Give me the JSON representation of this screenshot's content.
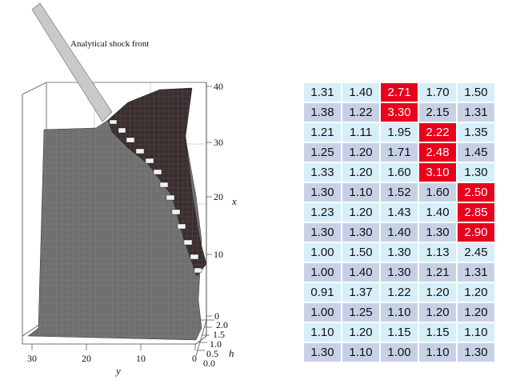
{
  "plot": {
    "annotation": "Analytical shock front",
    "axes": {
      "x": {
        "label": "x",
        "ticks": [
          "40",
          "30",
          "20",
          "10",
          "0"
        ]
      },
      "y": {
        "label": "y",
        "ticks": [
          "30",
          "20",
          "10",
          "0"
        ]
      },
      "h": {
        "label": "h",
        "ticks": [
          "2.0",
          "1.5",
          "1.0",
          "0.5",
          "0.0"
        ]
      }
    }
  },
  "grid": {
    "rows": [
      [
        "1.31",
        "1.40",
        "2.71",
        "1.70",
        "1.50"
      ],
      [
        "1.38",
        "1.22",
        "3.30",
        "2.15",
        "1.31"
      ],
      [
        "1.21",
        "1.11",
        "1.95",
        "2.22",
        "1.35"
      ],
      [
        "1.25",
        "1.20",
        "1.71",
        "2.48",
        "1.45"
      ],
      [
        "1.33",
        "1.20",
        "1.60",
        "3.10",
        "1.30"
      ],
      [
        "1.30",
        "1.10",
        "1.52",
        "1.60",
        "2.50"
      ],
      [
        "1.23",
        "1.20",
        "1.43",
        "1.40",
        "2.85"
      ],
      [
        "1.30",
        "1.30",
        "1.40",
        "1.30",
        "2.90"
      ],
      [
        "1.00",
        "1.50",
        "1.30",
        "1.13",
        "2.45"
      ],
      [
        "1.00",
        "1.40",
        "1.30",
        "1.21",
        "1.31"
      ],
      [
        "0.91",
        "1.37",
        "1.22",
        "1.20",
        "1.20"
      ],
      [
        "1.00",
        "1.25",
        "1.10",
        "1.20",
        "1.20"
      ],
      [
        "1.10",
        "1.20",
        "1.15",
        "1.15",
        "1.10"
      ],
      [
        "1.30",
        "1.10",
        "1.00",
        "1.10",
        "1.30"
      ]
    ],
    "highlighted": [
      [
        0,
        2
      ],
      [
        1,
        2
      ],
      [
        2,
        3
      ],
      [
        3,
        3
      ],
      [
        4,
        3
      ],
      [
        5,
        4
      ],
      [
        6,
        4
      ],
      [
        7,
        4
      ]
    ],
    "highlight_color": "#e8001c"
  }
}
